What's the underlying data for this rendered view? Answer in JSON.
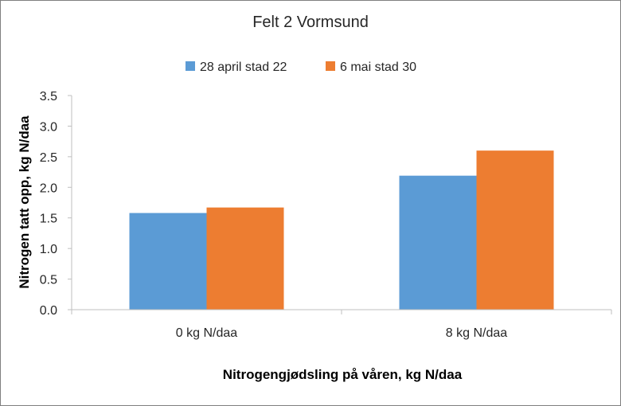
{
  "chart_data": {
    "type": "bar",
    "title": "Felt 2 Vormsund",
    "xlabel": "Nitrogengjødsling på våren, kg N/daa",
    "ylabel": "Nitrogen tatt opp, kg N/daa",
    "categories": [
      "0 kg N/daa",
      "8 kg N/daa"
    ],
    "series": [
      {
        "name": "28 april stad 22",
        "color": "#5B9BD5",
        "values": [
          1.58,
          2.19
        ]
      },
      {
        "name": "6 mai stad 30",
        "color": "#ED7D31",
        "values": [
          1.67,
          2.6
        ]
      }
    ],
    "ylim": [
      0,
      3.5
    ],
    "yticks": [
      "0.0",
      "0.5",
      "1.0",
      "1.5",
      "2.0",
      "2.5",
      "3.0",
      "3.5"
    ],
    "grid": false,
    "legend_position": "top"
  }
}
